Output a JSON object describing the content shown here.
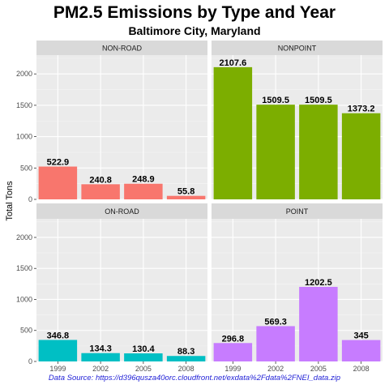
{
  "title": "PM2.5 Emissions by Type and Year",
  "subtitle": "Baltimore City, Maryland",
  "source": "Data Source: https://d396qusza40orc.cloudfront.net/exdata%2Fdata%2FNEI_data.zip",
  "chart_data": {
    "type": "bar",
    "ylabel": "Total Tons",
    "xlabel": "",
    "categories": [
      "1999",
      "2002",
      "2005",
      "2008"
    ],
    "ylim": [
      0,
      2300
    ],
    "yticks": [
      0,
      500,
      1000,
      1500,
      2000
    ],
    "grid": true,
    "legend": "none",
    "panels": [
      {
        "name": "NON-ROAD",
        "color": "#f8766d",
        "values": [
          522.9,
          240.8,
          248.9,
          55.8
        ],
        "labels": [
          "522.9",
          "240.8",
          "248.9",
          "55.8"
        ]
      },
      {
        "name": "NONPOINT",
        "color": "#7cae00",
        "values": [
          2107.6,
          1509.5,
          1509.5,
          1373.2
        ],
        "labels": [
          "2107.6",
          "1509.5",
          "1509.5",
          "1373.2"
        ]
      },
      {
        "name": "ON-ROAD",
        "color": "#00bfc4",
        "values": [
          346.8,
          134.3,
          130.4,
          88.3
        ],
        "labels": [
          "346.8",
          "134.3",
          "130.4",
          "88.3"
        ]
      },
      {
        "name": "POINT",
        "color": "#c77cff",
        "values": [
          296.8,
          569.3,
          1202.5,
          345
        ],
        "labels": [
          "296.8",
          "569.3",
          "1202.5",
          "345"
        ]
      }
    ]
  }
}
